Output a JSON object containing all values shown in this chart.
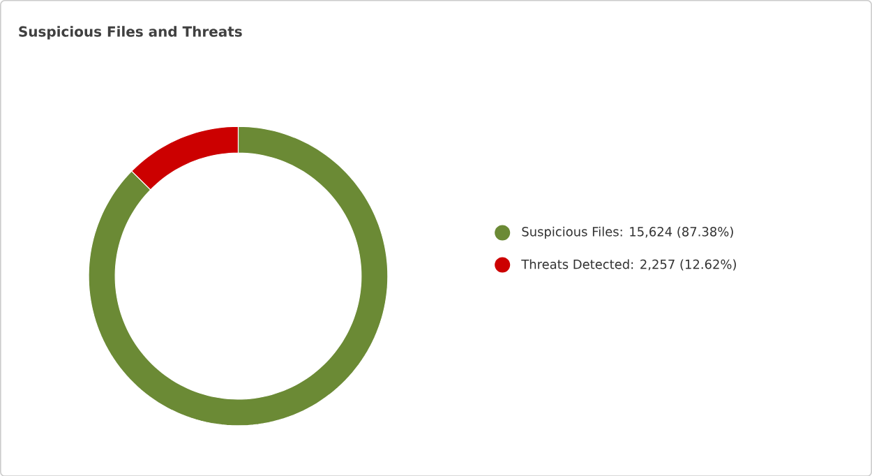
{
  "chart_data": {
    "type": "donut",
    "title": "Suspicious Files and Threats",
    "categories": [
      "Suspicious Files: 15,624 (87.38%)",
      "Threats Detected: 2,257 (12.62%)"
    ],
    "values": [
      15624,
      2257
    ],
    "colors": [
      "#6b8a35",
      "#cc0000"
    ],
    "legend": "right"
  }
}
